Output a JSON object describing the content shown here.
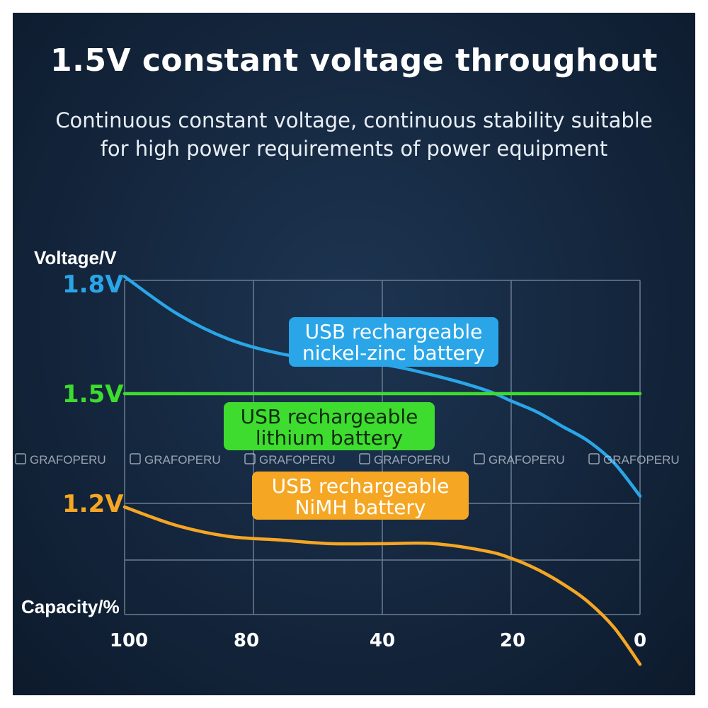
{
  "title": "1.5V constant voltage throughout",
  "subtitle_lines": [
    "Continuous constant voltage, continuous stability suitable",
    "for high power requirements of power equipment"
  ],
  "watermark": "GRAFOPERU",
  "chart_data": {
    "type": "line",
    "ylabel": "Voltage/V",
    "xlabel": "Capacity/%",
    "x_ticks": [
      "100",
      "80",
      "40",
      "20",
      "0"
    ],
    "y_ticks": [
      {
        "label": "1.8V",
        "value": 1.8,
        "color": "#2aa6e8"
      },
      {
        "label": "1.5V",
        "value": 1.5,
        "color": "#3ddc2e"
      },
      {
        "label": "1.2V",
        "value": 1.2,
        "color": "#f5a623"
      }
    ],
    "grid": true,
    "series": [
      {
        "name": "USB rechargeable nickel-zinc battery",
        "label_lines": [
          "USB rechargeable",
          "nickel-zinc battery"
        ],
        "color": "#2aa6e8",
        "x": [
          100,
          90,
          80,
          70,
          60,
          50,
          40,
          30,
          25,
          20,
          15,
          10,
          5,
          0
        ],
        "y": [
          1.82,
          1.72,
          1.65,
          1.61,
          1.59,
          1.58,
          1.55,
          1.51,
          1.48,
          1.45,
          1.41,
          1.37,
          1.31,
          1.22
        ]
      },
      {
        "name": "USB rechargeable lithium battery",
        "label_lines": [
          "USB rechargeable",
          "lithium battery"
        ],
        "color": "#3ddc2e",
        "x": [
          100,
          0
        ],
        "y": [
          1.5,
          1.5
        ]
      },
      {
        "name": "USB rechargeable NiMH battery",
        "label_lines": [
          "USB rechargeable",
          "NiMH battery"
        ],
        "color": "#f5a623",
        "x": [
          100,
          90,
          80,
          70,
          60,
          50,
          40,
          30,
          25,
          20,
          15,
          10,
          5,
          0
        ],
        "y": [
          1.19,
          1.14,
          1.11,
          1.1,
          1.09,
          1.09,
          1.09,
          1.07,
          1.05,
          1.02,
          0.98,
          0.93,
          0.86,
          0.76
        ]
      }
    ]
  }
}
